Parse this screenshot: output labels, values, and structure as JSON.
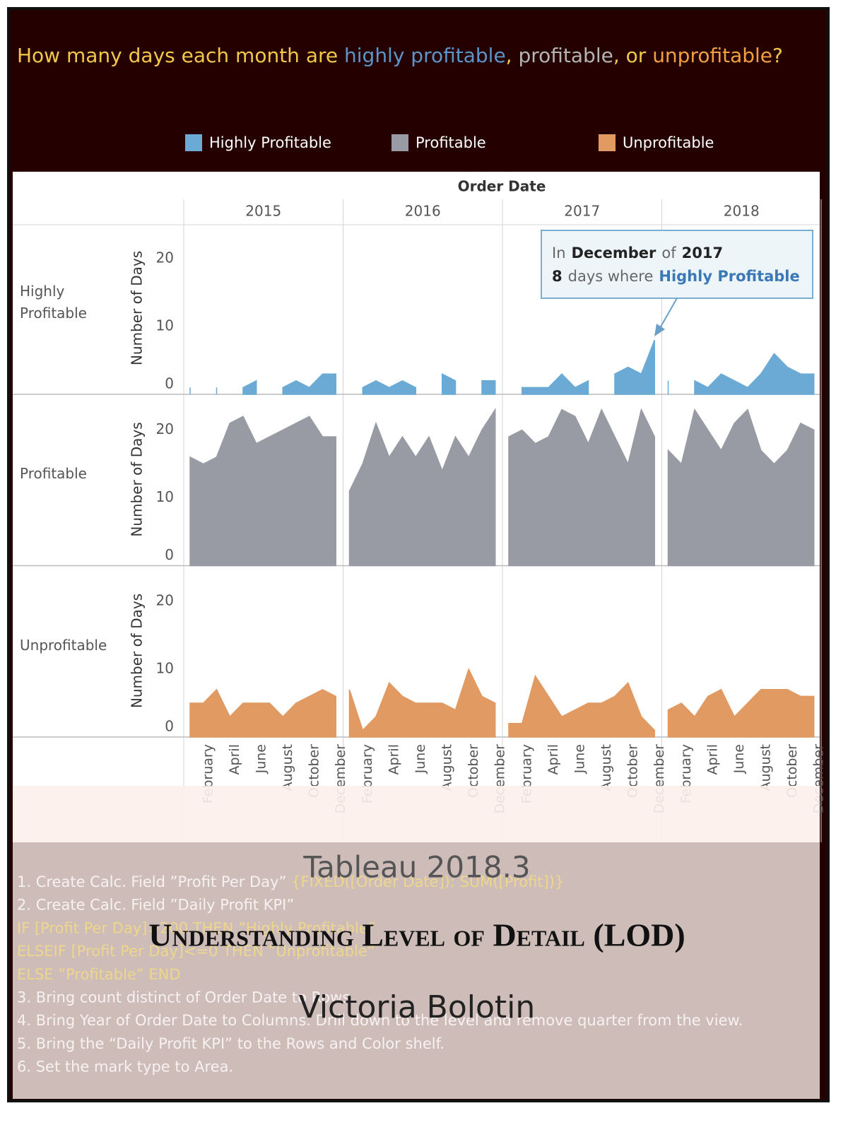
{
  "chart_data": {
    "type": "area",
    "title_parts": [
      {
        "text": "How many days each month are ",
        "color": "#f2c84b"
      },
      {
        "text": "highly profitable",
        "color": "#5b95c9"
      },
      {
        "text": ", ",
        "color": "#f2c84b"
      },
      {
        "text": "profitable",
        "color": "#b4b4b4"
      },
      {
        "text": ", or ",
        "color": "#f2c84b"
      },
      {
        "text": "unprofitable",
        "color": "#f0a040"
      },
      {
        "text": "?",
        "color": "#f2c84b"
      }
    ],
    "column_title": "Order Date",
    "columns": [
      "2015",
      "2016",
      "2017",
      "2018"
    ],
    "categories": [
      null,
      "February",
      null,
      "April",
      null,
      "June",
      null,
      "August",
      null,
      "October",
      null,
      "December"
    ],
    "y_label": "Number of Days",
    "ylim": [
      0,
      25
    ],
    "yticks": [
      0,
      10,
      20
    ],
    "series": [
      {
        "name": "Highly Profitable",
        "color": "#6aaad4",
        "values": [
          [
            1,
            null,
            1,
            null,
            1,
            2,
            null,
            1,
            2,
            1,
            3,
            3
          ],
          [
            null,
            1,
            2,
            1,
            2,
            1,
            null,
            3,
            2,
            null,
            2,
            2
          ],
          [
            null,
            1,
            1,
            1,
            3,
            1,
            2,
            null,
            3,
            4,
            3,
            8
          ],
          [
            2,
            null,
            2,
            1,
            3,
            2,
            1,
            3,
            6,
            4,
            3,
            3
          ]
        ]
      },
      {
        "name": "Profitable",
        "color": "#989ba3",
        "values": [
          [
            16,
            15,
            16,
            21,
            22,
            18,
            19,
            20,
            21,
            22,
            19,
            19
          ],
          [
            11,
            15,
            21,
            16,
            19,
            16,
            19,
            14,
            19,
            16,
            20,
            23
          ],
          [
            19,
            20,
            18,
            19,
            23,
            22,
            18,
            23,
            19,
            15,
            23,
            19
          ],
          [
            17,
            15,
            23,
            20,
            17,
            21,
            23,
            17,
            15,
            17,
            21,
            20
          ]
        ]
      },
      {
        "name": "Unprofitable",
        "color": "#e09a62",
        "values": [
          [
            5,
            5,
            7,
            3,
            5,
            5,
            5,
            3,
            5,
            6,
            7,
            6
          ],
          [
            7,
            1,
            3,
            8,
            6,
            5,
            5,
            5,
            4,
            10,
            6,
            5
          ],
          [
            2,
            2,
            9,
            6,
            3,
            4,
            5,
            5,
            6,
            8,
            3,
            1
          ],
          [
            4,
            5,
            3,
            6,
            7,
            3,
            5,
            7,
            7,
            7,
            6,
            6
          ]
        ]
      }
    ],
    "annotation": [
      [
        {
          "text": "In",
          "style": "plain"
        },
        {
          "text": "December",
          "style": "strong"
        },
        {
          "text": "of",
          "style": "plain"
        },
        {
          "text": "2017",
          "style": "strong"
        }
      ],
      [
        {
          "text": "8",
          "style": "strong"
        },
        {
          "text": "days where",
          "style": "plain"
        },
        {
          "text": "Highly Profitable",
          "style": "accent"
        }
      ]
    ]
  },
  "cover": {
    "edition": "Tableau 2018.3",
    "title": "Understanding Level of Detail (LOD)",
    "author": "Victoria Bolotin"
  },
  "notes": [
    [
      {
        "text": "1. Create Calc. Field ”Profit Per Day” "
      },
      {
        "text": "{FIXED([Order Date]): SUM([Profit])}",
        "color": "#eed78c"
      }
    ],
    [
      {
        "text": "2. Create Calc. Field ”Daily Profit KPI”"
      }
    ],
    [
      {
        "text": "IF [Profit Per Day]>200 THEN ”Highly Profitable”",
        "color": "#eed78c"
      }
    ],
    [
      {
        "text": "ELSEIF [Profit Per Day]<=0 THEN ”Unprofitable”",
        "color": "#eed78c"
      }
    ],
    [
      {
        "text": "ELSE ”Profitable” END",
        "color": "#eed78c"
      }
    ],
    [
      {
        "text": "3. Bring count distinct of Order Date to Rows."
      }
    ],
    [
      {
        "text": "4. Bring Year of Order Date to Columns. Drill down to the level and remove quarter from the view."
      }
    ],
    [
      {
        "text": "5. Bring the “Daily Profit KPI”  to the Rows and Color shelf."
      }
    ],
    [
      {
        "text": "6. Set the mark type to Area."
      }
    ]
  ]
}
